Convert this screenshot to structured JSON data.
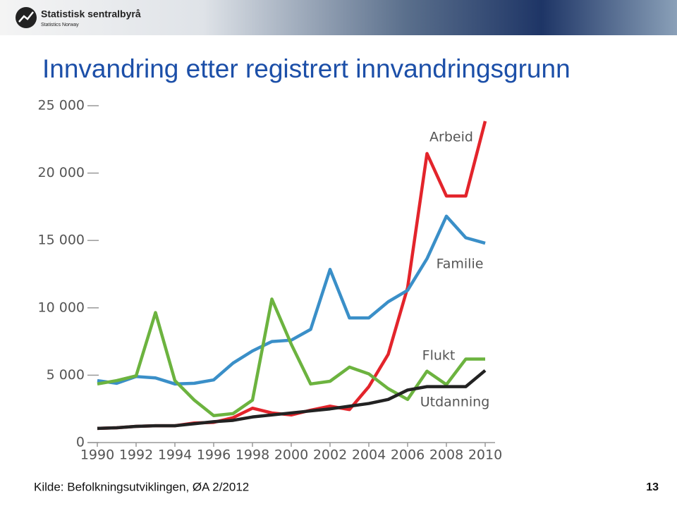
{
  "header": {
    "logo": "Statistisk sentralbyrå",
    "logo_sub": "Statistics Norway"
  },
  "chart_data": {
    "type": "line",
    "title": "Innvandring etter registrert innvandringsgrunn",
    "x": [
      1990,
      1991,
      1992,
      1993,
      1994,
      1995,
      1996,
      1997,
      1998,
      1999,
      2000,
      2001,
      2002,
      2003,
      2004,
      2005,
      2006,
      2007,
      2008,
      2009,
      2010
    ],
    "series": [
      {
        "name": "Arbeid",
        "color": "#e3242b",
        "values": [
          1050,
          1100,
          1200,
          1250,
          1250,
          1450,
          1500,
          1850,
          2550,
          2200,
          2050,
          2400,
          2700,
          2450,
          4150,
          6550,
          11500,
          21450,
          18300,
          18300,
          23850
        ]
      },
      {
        "name": "Familie",
        "color": "#3a8fc8",
        "values": [
          4600,
          4400,
          4900,
          4800,
          4350,
          4400,
          4650,
          5900,
          6800,
          7500,
          7600,
          8400,
          12850,
          9250,
          9250,
          10450,
          11300,
          13650,
          16800,
          15200,
          14800
        ]
      },
      {
        "name": "Flukt",
        "color": "#6cb33f",
        "values": [
          4350,
          4600,
          4950,
          9650,
          4600,
          3150,
          2000,
          2150,
          3150,
          10650,
          7300,
          4350,
          4550,
          5600,
          5100,
          4000,
          3200,
          5300,
          4300,
          6200,
          6200
        ]
      },
      {
        "name": "Utdanning",
        "color": "#222222",
        "values": [
          1050,
          1100,
          1200,
          1250,
          1250,
          1400,
          1550,
          1650,
          1900,
          2050,
          2200,
          2350,
          2500,
          2700,
          2900,
          3200,
          3900,
          4150,
          4150,
          4150,
          5350
        ]
      }
    ],
    "xlim": [
      1990,
      2010
    ],
    "xticks": [
      1990,
      1992,
      1994,
      1996,
      1998,
      2000,
      2002,
      2004,
      2006,
      2008,
      2010
    ],
    "ylim": [
      0,
      25000
    ],
    "yticks": [
      0,
      {
        "value": 5000,
        "label": "5 000"
      },
      {
        "value": 10000,
        "label": "10 000"
      },
      {
        "value": 15000,
        "label": "15 000"
      },
      {
        "value": 20000,
        "label": "20 000"
      },
      {
        "value": 25000,
        "label": "25 000"
      }
    ],
    "grid": false,
    "source": "Kilde: Befolkningsutviklingen, ØA 2/2012"
  },
  "page_number": "13"
}
